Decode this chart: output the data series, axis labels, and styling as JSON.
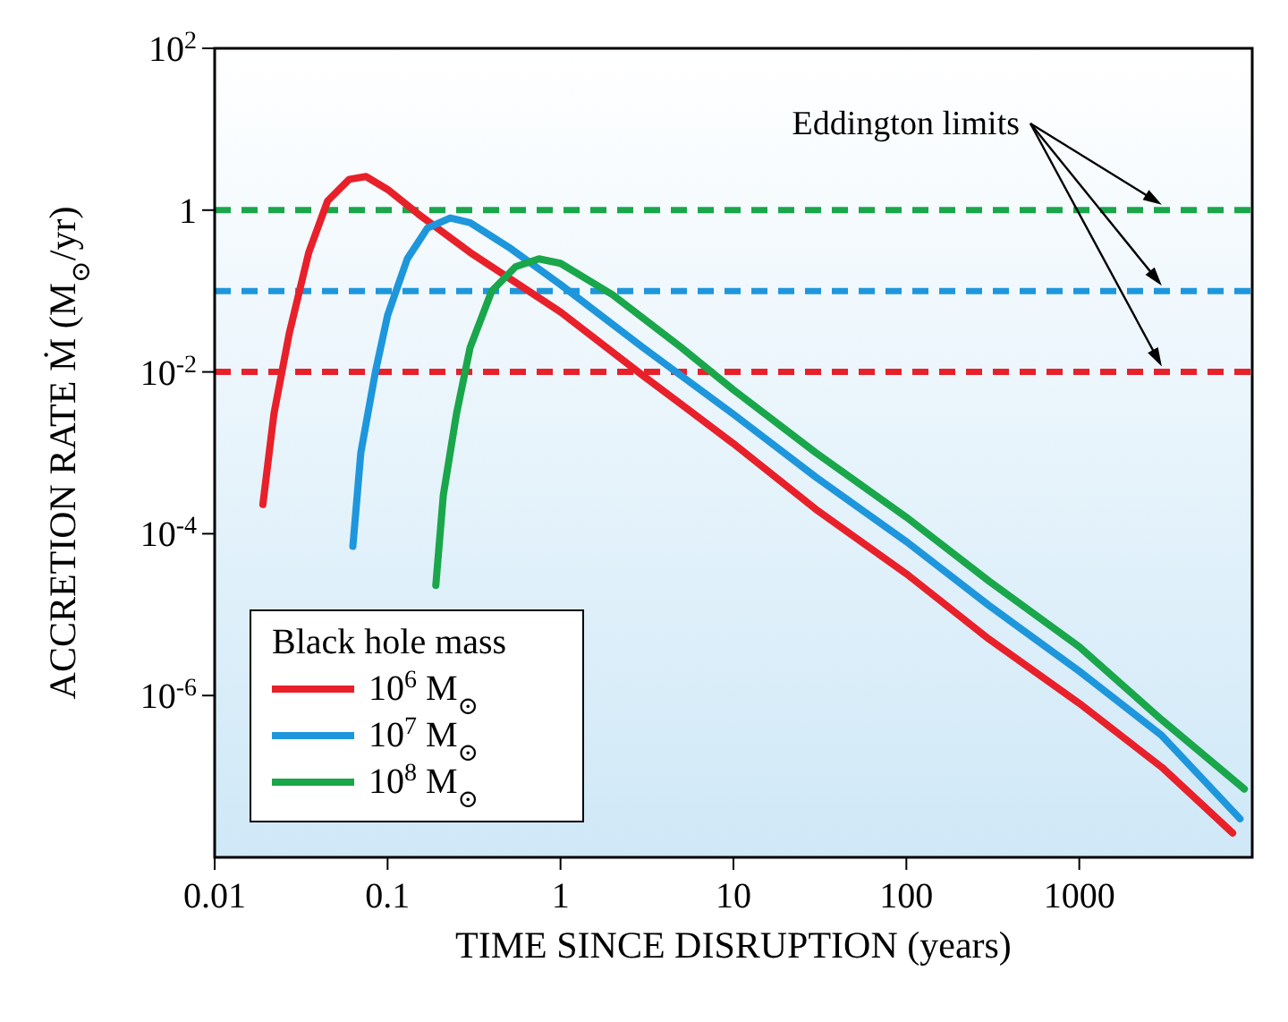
{
  "chart_data": {
    "type": "line",
    "xlabel": "TIME SINCE DISRUPTION (years)",
    "ylabel": "ACCRETION RATE Ṁ (M$_{⊙}$/yr)",
    "legend_title": "Black hole mass",
    "legend": "bottom left",
    "log": "xy",
    "grid": false,
    "line_style": "solid",
    "marker": "none",
    "xlim": [
      0.01,
      10000
    ],
    "xticks": [
      0.01,
      0.1,
      1,
      10,
      100,
      1000
    ],
    "ylim": [
      1e-08,
      100
    ],
    "yticks": [
      {
        "value": 100,
        "label": "10$^{2}$"
      },
      1,
      {
        "value": 0.01,
        "label": "10$^{-2}$"
      },
      {
        "value": 0.0001,
        "label": "10$^{-4}$"
      },
      {
        "value": 1e-06,
        "label": "10$^{-6}$"
      }
    ],
    "series": [
      {
        "name": "10$^{6}$ M$_{⊙}$",
        "color": "#e8202a",
        "x": [
          0.019,
          0.022,
          0.027,
          0.035,
          0.045,
          0.06,
          0.075,
          0.1,
          0.15,
          0.3,
          1,
          3,
          10,
          30,
          100,
          300,
          1000,
          3000,
          7700
        ],
        "values": [
          0.00023,
          0.003,
          0.03,
          0.3,
          1.3,
          2.4,
          2.6,
          1.8,
          0.9,
          0.3,
          0.055,
          0.009,
          0.0013,
          0.0002,
          3.2e-05,
          5e-06,
          8e-07,
          1.3e-07,
          2e-08
        ]
      },
      {
        "name": "10$^{7}$ M$_{⊙}$",
        "color": "#1e96dc",
        "x": [
          0.063,
          0.07,
          0.085,
          0.1,
          0.13,
          0.17,
          0.23,
          0.3,
          0.5,
          1,
          3,
          10,
          30,
          100,
          300,
          1000,
          3000,
          8500
        ],
        "values": [
          7e-05,
          0.001,
          0.01,
          0.05,
          0.25,
          0.6,
          0.8,
          0.7,
          0.35,
          0.12,
          0.02,
          0.003,
          0.0005,
          8e-05,
          1.3e-05,
          2e-06,
          3.2e-07,
          3e-08
        ]
      },
      {
        "name": "10$^{8}$ M$_{⊙}$",
        "color": "#1aa64a",
        "x": [
          0.19,
          0.21,
          0.25,
          0.3,
          0.4,
          0.55,
          0.75,
          1,
          2,
          5,
          10,
          30,
          100,
          300,
          1000,
          3000,
          9000
        ],
        "values": [
          2.3e-05,
          0.0003,
          0.003,
          0.02,
          0.1,
          0.2,
          0.25,
          0.22,
          0.09,
          0.02,
          0.006,
          0.001,
          0.00016,
          2.6e-05,
          4e-06,
          5e-07,
          7e-08
        ]
      }
    ],
    "ref_lines": [
      {
        "axis": "y",
        "value": 1,
        "color": "#1aa64a",
        "line_style": "dashed"
      },
      {
        "axis": "y",
        "value": 0.1,
        "color": "#1e96dc",
        "line_style": "dashed"
      },
      {
        "axis": "y",
        "value": 0.01,
        "color": "#e8202a",
        "line_style": "dashed"
      }
    ],
    "annotations": [
      {
        "text": "Eddington limits",
        "x": 3000,
        "y": 1
      }
    ]
  }
}
